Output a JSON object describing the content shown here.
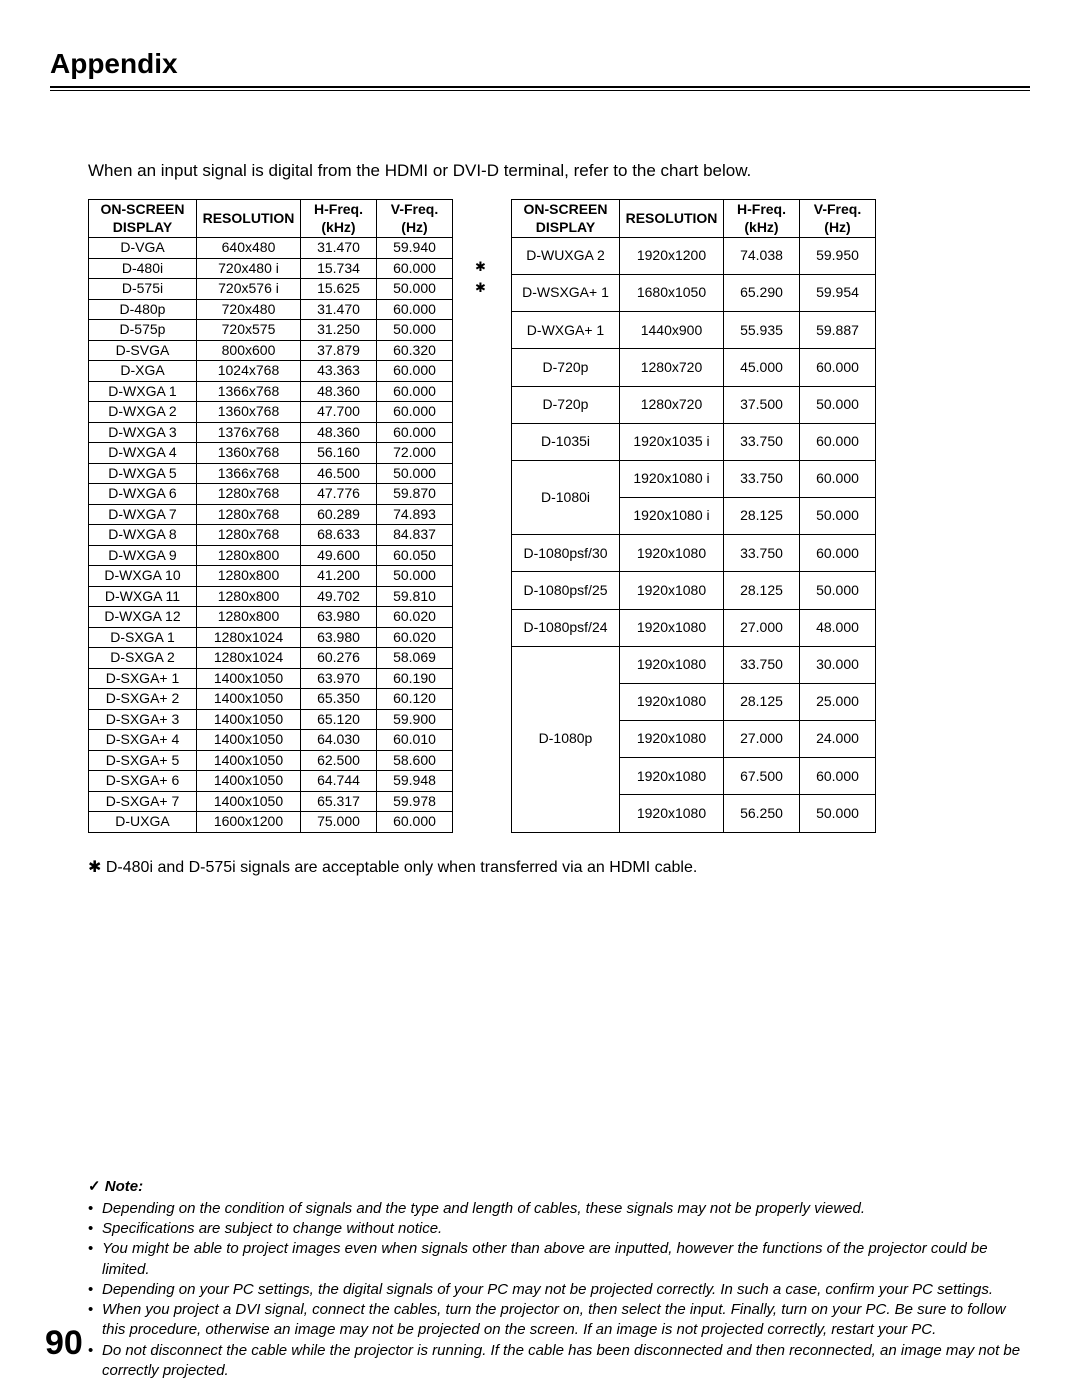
{
  "page": {
    "title": "Appendix",
    "intro": "When an input signal is digital from the HDMI or DVI-D terminal, refer to the chart below.",
    "footnote_symbol": "✱",
    "footnote": "D-480i and D-575i signals are acceptable only when transferred via an HDMI cable.",
    "page_number": "90"
  },
  "headers": {
    "display_l1": "ON-SCREEN",
    "display_l2": "DISPLAY",
    "resolution": "RESOLUTION",
    "h_l1": "H-Freq.",
    "h_l2": "(kHz)",
    "v_l1": "V-Freq.",
    "v_l2": "(Hz)"
  },
  "left_table": [
    [
      "D-VGA",
      "640x480",
      "31.470",
      "59.940"
    ],
    [
      "D-480i",
      "720x480 i",
      "15.734",
      "60.000"
    ],
    [
      "D-575i",
      "720x576 i",
      "15.625",
      "50.000"
    ],
    [
      "D-480p",
      "720x480",
      "31.470",
      "60.000"
    ],
    [
      "D-575p",
      "720x575",
      "31.250",
      "50.000"
    ],
    [
      "D-SVGA",
      "800x600",
      "37.879",
      "60.320"
    ],
    [
      "D-XGA",
      "1024x768",
      "43.363",
      "60.000"
    ],
    [
      "D-WXGA 1",
      "1366x768",
      "48.360",
      "60.000"
    ],
    [
      "D-WXGA 2",
      "1360x768",
      "47.700",
      "60.000"
    ],
    [
      "D-WXGA 3",
      "1376x768",
      "48.360",
      "60.000"
    ],
    [
      "D-WXGA 4",
      "1360x768",
      "56.160",
      "72.000"
    ],
    [
      "D-WXGA 5",
      "1366x768",
      "46.500",
      "50.000"
    ],
    [
      "D-WXGA 6",
      "1280x768",
      "47.776",
      "59.870"
    ],
    [
      "D-WXGA 7",
      "1280x768",
      "60.289",
      "74.893"
    ],
    [
      "D-WXGA 8",
      "1280x768",
      "68.633",
      "84.837"
    ],
    [
      "D-WXGA 9",
      "1280x800",
      "49.600",
      "60.050"
    ],
    [
      "D-WXGA 10",
      "1280x800",
      "41.200",
      "50.000"
    ],
    [
      "D-WXGA 11",
      "1280x800",
      "49.702",
      "59.810"
    ],
    [
      "D-WXGA 12",
      "1280x800",
      "63.980",
      "60.020"
    ],
    [
      "D-SXGA 1",
      "1280x1024",
      "63.980",
      "60.020"
    ],
    [
      "D-SXGA 2",
      "1280x1024",
      "60.276",
      "58.069"
    ],
    [
      "D-SXGA+ 1",
      "1400x1050",
      "63.970",
      "60.190"
    ],
    [
      "D-SXGA+ 2",
      "1400x1050",
      "65.350",
      "60.120"
    ],
    [
      "D-SXGA+ 3",
      "1400x1050",
      "65.120",
      "59.900"
    ],
    [
      "D-SXGA+ 4",
      "1400x1050",
      "64.030",
      "60.010"
    ],
    [
      "D-SXGA+ 5",
      "1400x1050",
      "62.500",
      "58.600"
    ],
    [
      "D-SXGA+ 6",
      "1400x1050",
      "64.744",
      "59.948"
    ],
    [
      "D-SXGA+ 7",
      "1400x1050",
      "65.317",
      "59.978"
    ],
    [
      "D-UXGA",
      "1600x1200",
      "75.000",
      "60.000"
    ]
  ],
  "marker_rows": [
    1,
    2
  ],
  "right_table_simple": [
    [
      "D-WUXGA 2",
      "1920x1200",
      "74.038",
      "59.950"
    ],
    [
      "D-WSXGA+ 1",
      "1680x1050",
      "65.290",
      "59.954"
    ],
    [
      "D-WXGA+ 1",
      "1440x900",
      "55.935",
      "59.887"
    ],
    [
      "D-720p",
      "1280x720",
      "45.000",
      "60.000"
    ],
    [
      "D-720p",
      "1280x720",
      "37.500",
      "50.000"
    ],
    [
      "D-1035i",
      "1920x1035 i",
      "33.750",
      "60.000"
    ]
  ],
  "right_d1080i": {
    "label": "D-1080i",
    "rows": [
      [
        "1920x1080 i",
        "33.750",
        "60.000"
      ],
      [
        "1920x1080 i",
        "28.125",
        "50.000"
      ]
    ]
  },
  "right_after_d1080i": [
    [
      "D-1080psf/30",
      "1920x1080",
      "33.750",
      "60.000"
    ],
    [
      "D-1080psf/25",
      "1920x1080",
      "28.125",
      "50.000"
    ],
    [
      "D-1080psf/24",
      "1920x1080",
      "27.000",
      "48.000"
    ]
  ],
  "right_d1080p": {
    "label": "D-1080p",
    "rows": [
      [
        "1920x1080",
        "33.750",
        "30.000"
      ],
      [
        "1920x1080",
        "28.125",
        "25.000"
      ],
      [
        "1920x1080",
        "27.000",
        "24.000"
      ],
      [
        "1920x1080",
        "67.500",
        "60.000"
      ],
      [
        "1920x1080",
        "56.250",
        "50.000"
      ]
    ]
  },
  "note": {
    "heading": "Note:",
    "items": [
      "Depending on the condition of signals and the type and length of cables, these signals may not be properly viewed.",
      "Specifications are subject to change without notice.",
      "You might be able to project images even when signals other than above are inputted, however the functions of the projector could be limited.",
      "Depending on your PC settings, the digital signals of your PC may not be projected correctly. In such a case, confirm your PC settings.",
      "When you project a DVI signal, connect the cables, turn the projector on, then select the input. Finally, turn on your PC. Be sure to follow this procedure, otherwise an image may not be projected on the screen. If an image is not projected correctly, restart your PC.",
      "Do not disconnect the cable while the projector is running. If the cable has been disconnected and then reconnected, an image may not be correctly projected."
    ]
  }
}
